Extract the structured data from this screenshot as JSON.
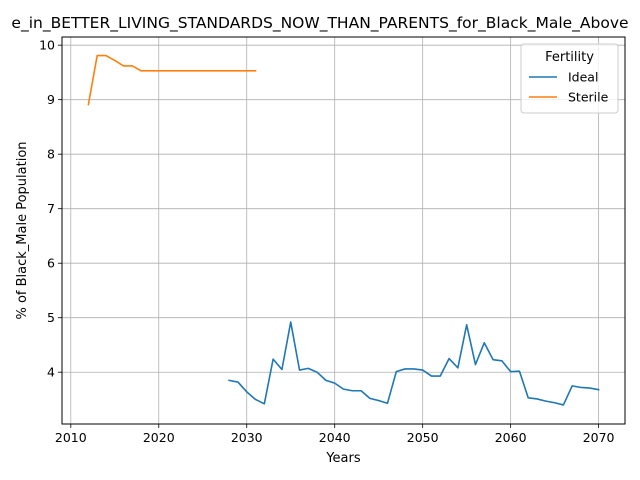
{
  "chart_data": {
    "type": "line",
    "title": "e_in_BETTER_LIVING_STANDARDS_NOW_THAN_PARENTS_for_Black_Male_Above",
    "xlabel": "Years",
    "ylabel": "% of Black_Male Population",
    "xlim": [
      2009,
      2073
    ],
    "ylim": [
      3.05,
      10.15
    ],
    "xticks": [
      "2010",
      "2020",
      "2030",
      "2040",
      "2050",
      "2060",
      "2070"
    ],
    "yticks": [
      "4",
      "5",
      "6",
      "7",
      "8",
      "9",
      "10"
    ],
    "grid": true,
    "legend": {
      "title": "Fertility",
      "position": "top-right"
    },
    "series": [
      {
        "name": "Ideal",
        "color": "#1f77b4",
        "x": [
          2028,
          2029,
          2030,
          2031,
          2032,
          2033,
          2034,
          2035,
          2036,
          2037,
          2038,
          2039,
          2040,
          2041,
          2042,
          2043,
          2044,
          2045,
          2046,
          2047,
          2048,
          2049,
          2050,
          2051,
          2052,
          2053,
          2054,
          2055,
          2056,
          2057,
          2058,
          2059,
          2060,
          2061,
          2062,
          2063,
          2064,
          2065,
          2066,
          2067,
          2068,
          2069,
          2070
        ],
        "y": [
          3.85,
          3.82,
          3.64,
          3.5,
          3.42,
          4.24,
          4.05,
          4.92,
          4.04,
          4.07,
          4.0,
          3.85,
          3.8,
          3.69,
          3.66,
          3.66,
          3.52,
          3.48,
          3.43,
          4.01,
          4.06,
          4.06,
          4.04,
          3.93,
          3.93,
          4.25,
          4.08,
          4.87,
          4.14,
          4.54,
          4.23,
          4.21,
          4.01,
          4.02,
          3.53,
          3.51,
          3.47,
          3.44,
          3.4,
          3.75,
          3.72,
          3.71,
          3.68
        ]
      },
      {
        "name": "Sterile",
        "color": "#ff7f0e",
        "x": [
          2012,
          2013,
          2014,
          2015,
          2016,
          2017,
          2018,
          2019,
          2020,
          2021,
          2022,
          2023,
          2024,
          2025,
          2026,
          2027,
          2028,
          2029,
          2030,
          2031
        ],
        "y": [
          8.91,
          9.81,
          9.81,
          9.72,
          9.62,
          9.62,
          9.53,
          9.53,
          9.53,
          9.53,
          9.53,
          9.53,
          9.53,
          9.53,
          9.53,
          9.53,
          9.53,
          9.53,
          9.53,
          9.53
        ]
      }
    ]
  }
}
